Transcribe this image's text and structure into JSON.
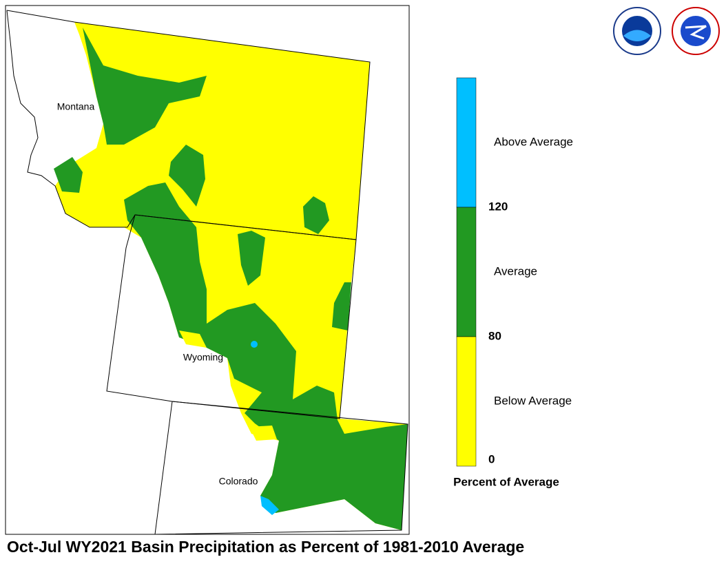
{
  "map": {
    "title": "Oct-Jul WY2021 Basin Precipitation as Percent of 1981-2010 Average",
    "states": [
      "Montana",
      "Wyoming",
      "Colorado"
    ],
    "legend": {
      "title": "Percent of Average",
      "classes": [
        {
          "label": "Above Average",
          "color": "#00bfff"
        },
        {
          "label": "Average",
          "color": "#229922"
        },
        {
          "label": "Below Average",
          "color": "#ffff00"
        }
      ],
      "ticks": [
        "120",
        "80",
        "0"
      ]
    }
  }
}
